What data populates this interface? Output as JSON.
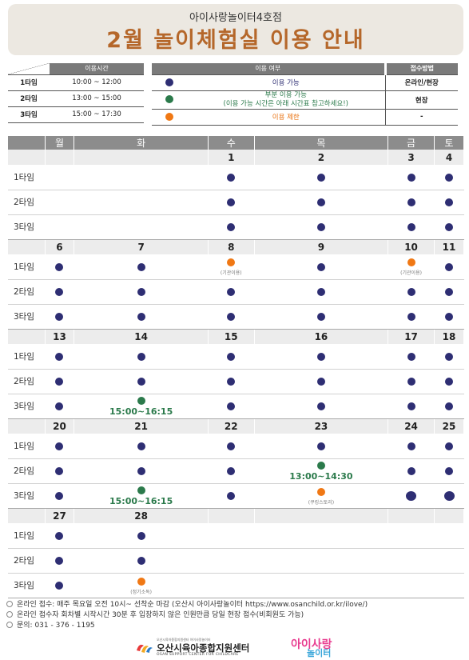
{
  "header": {
    "subtitle": "아이사랑놀이터4호점",
    "title": "2월 놀이체험실 이용 안내"
  },
  "time_table": {
    "header": "이용시간",
    "rows": [
      {
        "label": "1타임",
        "time": "10:00 ~ 12:00"
      },
      {
        "label": "2타임",
        "time": "13:00 ~ 15:00"
      },
      {
        "label": "3타임",
        "time": "15:00 ~ 17:30"
      }
    ]
  },
  "legend": {
    "header_status": "이용 여부",
    "header_method": "접수방법",
    "rows": [
      {
        "color": "blue",
        "label": "이용 가능",
        "method": "온라인/현장"
      },
      {
        "color": "green",
        "label": "부분 이용 가능",
        "label2": "(이용 가능 시간은 아래 시간표 참고하세요!)",
        "method": "현장"
      },
      {
        "color": "orange",
        "label": "이용 제한",
        "method": "-"
      }
    ]
  },
  "calendar": {
    "days": [
      "월",
      "화",
      "수",
      "목",
      "금",
      "토"
    ],
    "slot_labels": [
      "1타임",
      "2타임",
      "3타임"
    ],
    "weeks": [
      {
        "dates": [
          "",
          "",
          "1",
          "2",
          "3",
          "4"
        ],
        "slots": [
          [
            {},
            {},
            {
              "c": "blue"
            },
            {
              "c": "blue"
            },
            {
              "c": "blue"
            },
            {
              "c": "blue"
            }
          ],
          [
            {},
            {},
            {
              "c": "blue"
            },
            {
              "c": "blue"
            },
            {
              "c": "blue"
            },
            {
              "c": "blue"
            }
          ],
          [
            {},
            {},
            {
              "c": "blue"
            },
            {
              "c": "blue"
            },
            {
              "c": "blue"
            },
            {
              "c": "blue"
            }
          ]
        ]
      },
      {
        "dates": [
          "6",
          "7",
          "8",
          "9",
          "10",
          "11"
        ],
        "slots": [
          [
            {
              "c": "blue"
            },
            {
              "c": "blue"
            },
            {
              "c": "orange",
              "note": "(기관이용)"
            },
            {
              "c": "blue"
            },
            {
              "c": "orange",
              "note": "(기관이용)"
            },
            {
              "c": "blue"
            }
          ],
          [
            {
              "c": "blue"
            },
            {
              "c": "blue"
            },
            {
              "c": "blue"
            },
            {
              "c": "blue"
            },
            {
              "c": "blue"
            },
            {
              "c": "blue"
            }
          ],
          [
            {
              "c": "blue"
            },
            {
              "c": "blue"
            },
            {
              "c": "blue"
            },
            {
              "c": "blue"
            },
            {
              "c": "blue"
            },
            {
              "c": "blue"
            }
          ]
        ]
      },
      {
        "dates": [
          "13",
          "14",
          "15",
          "16",
          "17",
          "18"
        ],
        "slots": [
          [
            {
              "c": "blue"
            },
            {
              "c": "blue"
            },
            {
              "c": "blue"
            },
            {
              "c": "blue"
            },
            {
              "c": "blue"
            },
            {
              "c": "blue"
            }
          ],
          [
            {
              "c": "blue"
            },
            {
              "c": "blue"
            },
            {
              "c": "blue"
            },
            {
              "c": "blue"
            },
            {
              "c": "blue"
            },
            {
              "c": "blue"
            }
          ],
          [
            {
              "c": "blue"
            },
            {
              "c": "green",
              "time": "15:00~16:15"
            },
            {
              "c": "blue"
            },
            {
              "c": "blue"
            },
            {
              "c": "blue"
            },
            {
              "c": "blue"
            }
          ]
        ]
      },
      {
        "dates": [
          "20",
          "21",
          "22",
          "23",
          "24",
          "25"
        ],
        "slots": [
          [
            {
              "c": "blue"
            },
            {
              "c": "blue"
            },
            {
              "c": "blue"
            },
            {
              "c": "blue"
            },
            {
              "c": "blue"
            },
            {
              "c": "blue"
            }
          ],
          [
            {
              "c": "blue"
            },
            {
              "c": "blue"
            },
            {
              "c": "blue"
            },
            {
              "c": "green",
              "time": "13:00~14:30"
            },
            {
              "c": "blue"
            },
            {
              "c": "blue"
            }
          ],
          [
            {
              "c": "blue"
            },
            {
              "c": "green",
              "time": "15:00~16:15"
            },
            {
              "c": "blue"
            },
            {
              "c": "orange",
              "note": "(쿠킹스토리)"
            },
            {
              "c": "blue",
              "big": true
            },
            {
              "c": "blue",
              "big": true
            }
          ]
        ]
      },
      {
        "dates": [
          "27",
          "28",
          "",
          "",
          "",
          ""
        ],
        "slots": [
          [
            {
              "c": "blue"
            },
            {
              "c": "blue"
            },
            {},
            {},
            {},
            {}
          ],
          [
            {
              "c": "blue"
            },
            {
              "c": "blue"
            },
            {},
            {},
            {},
            {}
          ],
          [
            {
              "c": "blue"
            },
            {
              "c": "orange",
              "note": "(정기소독)"
            },
            {},
            {},
            {},
            {}
          ]
        ]
      }
    ]
  },
  "footer": {
    "notes": [
      "온라인 접수: 매주 목요일 오전 10시~ 선착순 마감 (오산시 아이사랑놀이터 https://www.osanchild.or.kr/ilove/)",
      "온라인 접수자 회차별 시작시간 30분 후 입장하지 않은 인원만큼 당일 현장 접수(비회원도 가능)",
      "문의: 031 - 376 - 1195"
    ]
  },
  "logos": {
    "center_small": "오산시육아종합지원센터 아이사랑놀이터",
    "center_name": "오산시육아종합지원센터",
    "center_eng": "OSAN SUPPORT CENTER FOR CHILDCARE",
    "brand_line1": "아이사랑",
    "brand_line2": "놀이터",
    "brand_small": "오산시 아이사랑놀이터"
  },
  "colors": {
    "available": "#2e2e73",
    "partial": "#2b7a4b",
    "restricted": "#f07814",
    "title": "#b5672a"
  }
}
